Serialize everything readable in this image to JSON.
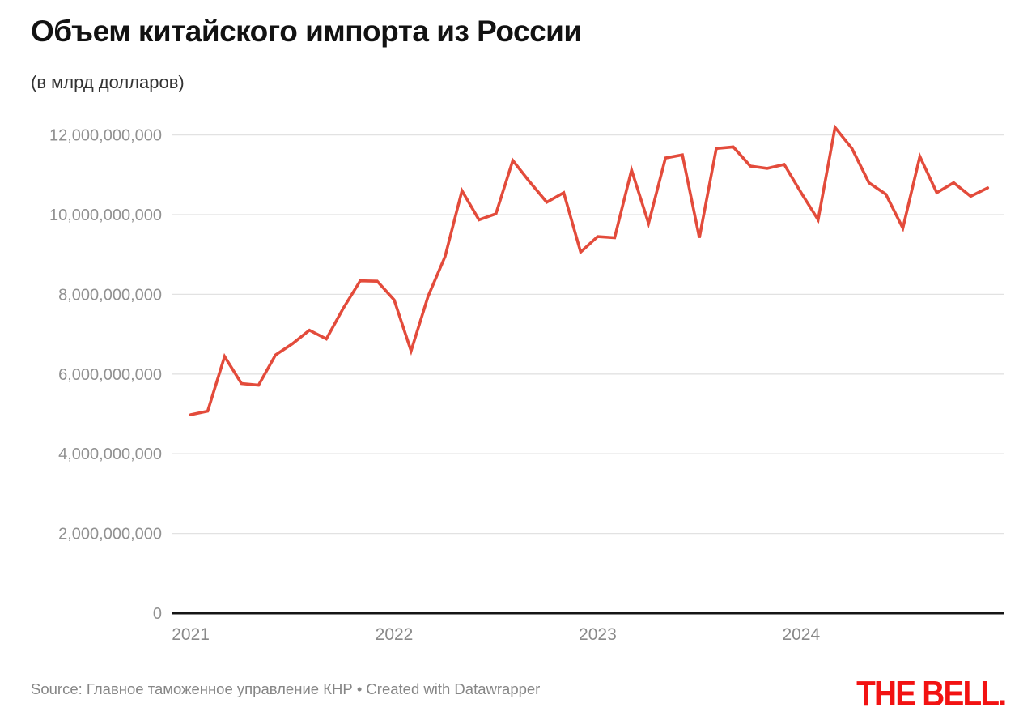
{
  "header": {
    "title": "Объем китайского импорта из России",
    "subtitle": "(в млрд долларов)"
  },
  "footer": {
    "source": "Source: Главное таможенное управление КНР • Created with Datawrapper",
    "logo_text": "THE BELL."
  },
  "colors": {
    "line": "#e34b3b",
    "grid": "#e2e2e2",
    "axis_line": "#151515",
    "y_tick_label": "#919191",
    "x_tick_label": "#8a8a8a",
    "logo_red": "#f21212"
  },
  "chart_data": {
    "type": "line",
    "title": "Объем китайского импорта из России",
    "subtitle": "(в млрд долларов)",
    "unit": "USD, billions (axis shown in raw dollars)",
    "grid": true,
    "legend": false,
    "ylim_billions": [
      0,
      12
    ],
    "x": [
      "2021-01",
      "2021-02",
      "2021-03",
      "2021-04",
      "2021-05",
      "2021-06",
      "2021-07",
      "2021-08",
      "2021-09",
      "2021-10",
      "2021-11",
      "2021-12",
      "2022-01",
      "2022-02",
      "2022-03",
      "2022-04",
      "2022-05",
      "2022-06",
      "2022-07",
      "2022-08",
      "2022-09",
      "2022-10",
      "2022-11",
      "2022-12",
      "2023-01",
      "2023-02",
      "2023-03",
      "2023-04",
      "2023-05",
      "2023-06",
      "2023-07",
      "2023-08",
      "2023-09",
      "2023-10",
      "2023-11",
      "2023-12",
      "2024-01",
      "2024-02",
      "2024-03",
      "2024-04",
      "2024-05",
      "2024-06",
      "2024-07",
      "2024-08",
      "2024-09",
      "2024-10",
      "2024-11",
      "2024-12"
    ],
    "values_billions": [
      4.98,
      5.07,
      6.44,
      5.76,
      5.72,
      6.48,
      6.76,
      7.1,
      6.88,
      7.65,
      8.34,
      8.33,
      7.86,
      6.58,
      7.95,
      8.95,
      10.6,
      9.87,
      10.02,
      11.36,
      10.82,
      10.31,
      10.55,
      9.06,
      9.45,
      9.42,
      11.12,
      9.78,
      11.42,
      11.5,
      9.42,
      11.66,
      11.7,
      11.22,
      11.16,
      11.26,
      10.55,
      9.87,
      12.19,
      11.66,
      10.8,
      10.51,
      9.66,
      11.46,
      10.55,
      10.8,
      10.46,
      10.67
    ],
    "y_ticks": [
      {
        "value_billions": 0,
        "label": "0"
      },
      {
        "value_billions": 2,
        "label": "2,000,000,000"
      },
      {
        "value_billions": 4,
        "label": "4,000,000,000"
      },
      {
        "value_billions": 6,
        "label": "6,000,000,000"
      },
      {
        "value_billions": 8,
        "label": "8,000,000,000"
      },
      {
        "value_billions": 10,
        "label": "10,000,000,000"
      },
      {
        "value_billions": 12,
        "label": "12,000,000,000"
      }
    ],
    "x_ticks": [
      {
        "month_index": 0,
        "label": "2021"
      },
      {
        "month_index": 12,
        "label": "2022"
      },
      {
        "month_index": 24,
        "label": "2023"
      },
      {
        "month_index": 36,
        "label": "2024"
      }
    ]
  }
}
